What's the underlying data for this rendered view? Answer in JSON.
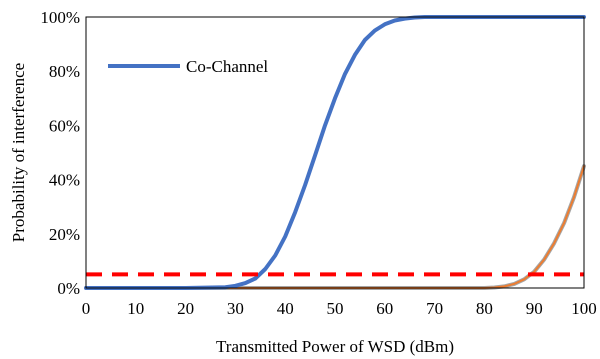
{
  "chart_data": {
    "type": "line",
    "xlabel": "Transmitted Power of WSD (dBm)",
    "ylabel": "Probability of interference",
    "xlim": [
      0,
      100
    ],
    "ylim": [
      0,
      100
    ],
    "x_ticks": [
      "0",
      "10",
      "20",
      "30",
      "40",
      "50",
      "60",
      "70",
      "80",
      "90",
      "100"
    ],
    "y_ticks": [
      "0%",
      "20%",
      "40%",
      "60%",
      "80%",
      "100%"
    ],
    "grid": false,
    "legend_position": "top-left",
    "series": [
      {
        "name": "Co-Channel",
        "color": "#4472C4",
        "style": "solid",
        "x": [
          0,
          20,
          28,
          30,
          32,
          34,
          36,
          38,
          40,
          42,
          44,
          46,
          48,
          50,
          52,
          54,
          56,
          58,
          60,
          62,
          64,
          66,
          68,
          70,
          75,
          80,
          90,
          100
        ],
        "y": [
          0,
          0,
          0.3,
          0.8,
          1.8,
          3.5,
          7,
          12,
          19,
          28,
          38,
          49,
          60,
          70,
          79,
          86,
          91.5,
          95,
          97.3,
          98.7,
          99.4,
          99.8,
          100,
          100,
          100,
          100,
          100,
          100
        ]
      },
      {
        "name": "",
        "color": "#A5A5A5",
        "style": "solid",
        "x": [
          0,
          80,
          82,
          84,
          86,
          88,
          90,
          92,
          94,
          96,
          98,
          100
        ],
        "y": [
          0,
          0,
          0.2,
          0.6,
          1.5,
          3.2,
          6,
          10.5,
          16.5,
          24,
          33.5,
          45
        ]
      },
      {
        "name": "",
        "color": "#ED7D31",
        "style": "solid",
        "x": [
          0,
          80,
          82,
          84,
          86,
          88,
          90,
          92,
          94,
          96,
          98,
          100
        ],
        "y": [
          0,
          0,
          0.2,
          0.6,
          1.5,
          3.2,
          6,
          10.5,
          16.5,
          24,
          33.5,
          45
        ]
      },
      {
        "name": "",
        "color": "#FF0000",
        "style": "dashed",
        "x": [
          0,
          100
        ],
        "y": [
          5,
          5
        ]
      }
    ]
  }
}
